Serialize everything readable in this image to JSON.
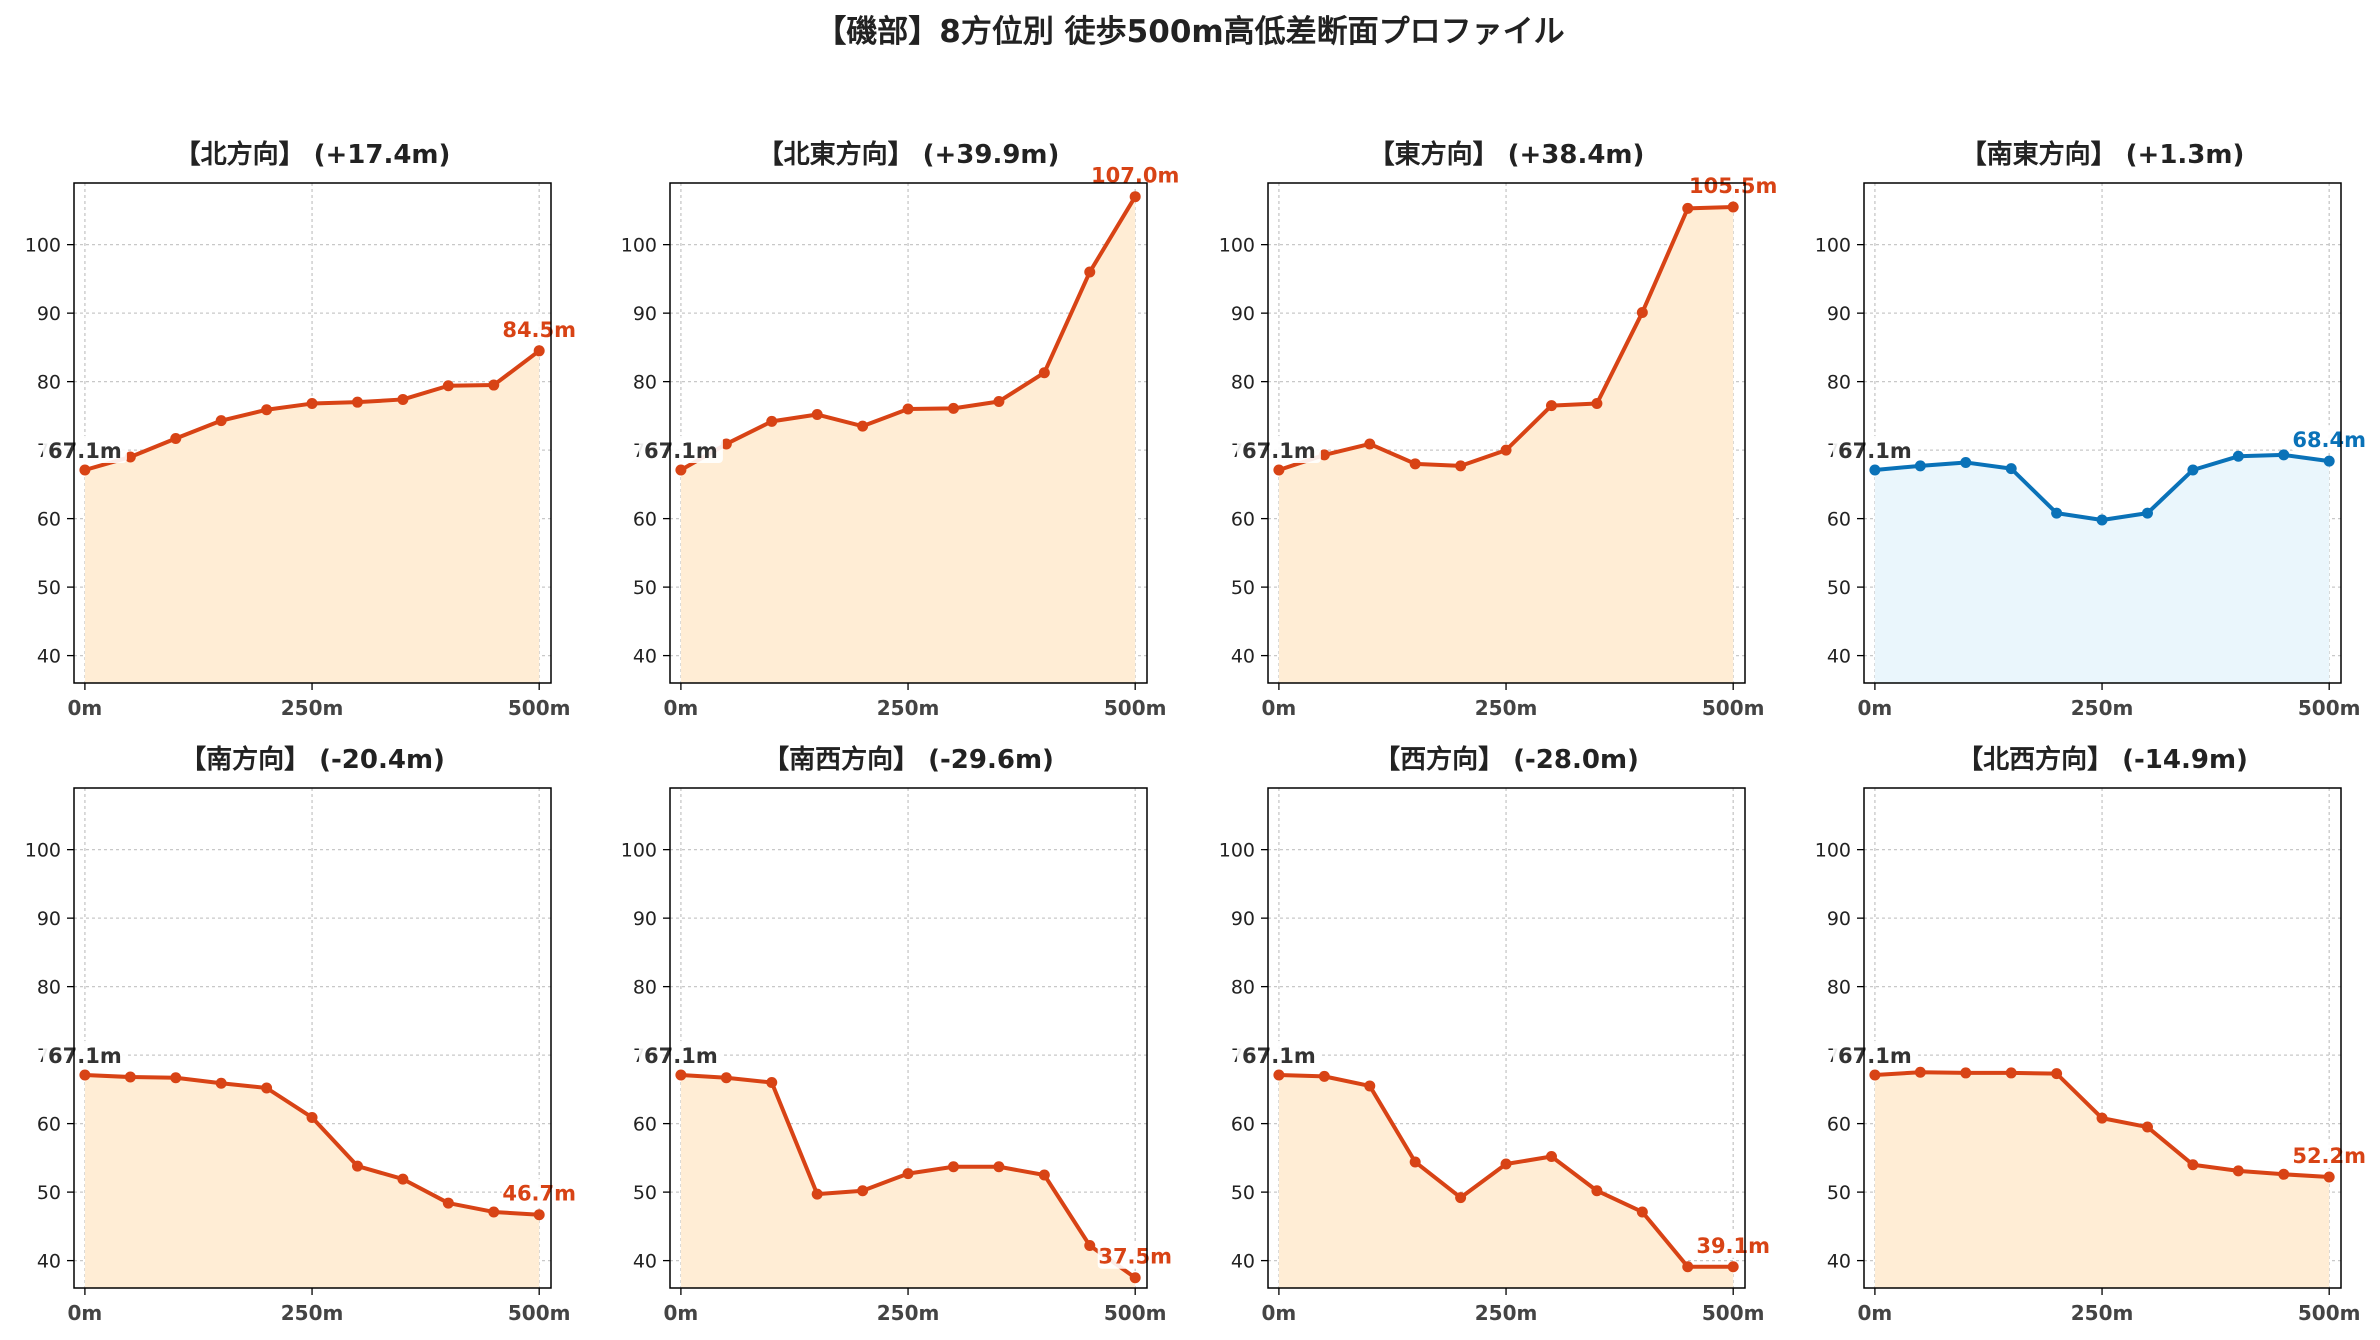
{
  "title": "【磯部】8方位別 徒歩500m高低差断面プロファイル",
  "colors": {
    "rise_line": "#d84315",
    "rise_fill": "#ffedd5",
    "flat_line": "#0a72b8",
    "flat_fill": "#eaf6fc",
    "start_label": "#333333"
  },
  "chart_data": [
    {
      "type": "area",
      "title": "【北方向】 (+17.4m)",
      "tone": "rise",
      "x": [
        0,
        50,
        100,
        150,
        200,
        250,
        300,
        350,
        400,
        450,
        500
      ],
      "values": [
        67.1,
        69.0,
        71.7,
        74.3,
        75.9,
        76.8,
        77.0,
        77.4,
        79.4,
        79.5,
        84.5
      ],
      "start_label": "67.1m",
      "end_label": "84.5m"
    },
    {
      "type": "area",
      "title": "【北東方向】 (+39.9m)",
      "tone": "rise",
      "x": [
        0,
        50,
        100,
        150,
        200,
        250,
        300,
        350,
        400,
        450,
        500
      ],
      "values": [
        67.1,
        70.9,
        74.2,
        75.2,
        73.5,
        76.0,
        76.1,
        77.1,
        81.3,
        96.0,
        107.0
      ],
      "start_label": "67.1m",
      "end_label": "107.0m"
    },
    {
      "type": "area",
      "title": "【東方向】 (+38.4m)",
      "tone": "rise",
      "x": [
        0,
        50,
        100,
        150,
        200,
        250,
        300,
        350,
        400,
        450,
        500
      ],
      "values": [
        67.1,
        69.3,
        70.9,
        68.0,
        67.7,
        70.0,
        76.5,
        76.8,
        90.1,
        105.3,
        105.5
      ],
      "start_label": "67.1m",
      "end_label": "105.5m"
    },
    {
      "type": "area",
      "title": "【南東方向】 (+1.3m)",
      "tone": "flat",
      "x": [
        0,
        50,
        100,
        150,
        200,
        250,
        300,
        350,
        400,
        450,
        500
      ],
      "values": [
        67.1,
        67.7,
        68.2,
        67.3,
        60.8,
        59.8,
        60.8,
        67.1,
        69.1,
        69.3,
        68.4
      ],
      "start_label": "67.1m",
      "end_label": "68.4m"
    },
    {
      "type": "area",
      "title": "【南方向】 (-20.4m)",
      "tone": "rise",
      "x": [
        0,
        50,
        100,
        150,
        200,
        250,
        300,
        350,
        400,
        450,
        500
      ],
      "values": [
        67.1,
        66.8,
        66.7,
        65.9,
        65.2,
        60.9,
        53.8,
        51.9,
        48.4,
        47.1,
        46.7
      ],
      "start_label": "67.1m",
      "end_label": "46.7m"
    },
    {
      "type": "area",
      "title": "【南西方向】 (-29.6m)",
      "tone": "rise",
      "x": [
        0,
        50,
        100,
        150,
        200,
        250,
        300,
        350,
        400,
        450,
        500
      ],
      "values": [
        67.1,
        66.7,
        66.0,
        49.7,
        50.2,
        52.7,
        53.7,
        53.7,
        52.5,
        42.2,
        37.5
      ],
      "start_label": "67.1m",
      "end_label": "37.5m"
    },
    {
      "type": "area",
      "title": "【西方向】 (-28.0m)",
      "tone": "rise",
      "x": [
        0,
        50,
        100,
        150,
        200,
        250,
        300,
        350,
        400,
        450,
        500
      ],
      "values": [
        67.1,
        66.9,
        65.5,
        54.4,
        49.2,
        54.1,
        55.2,
        50.2,
        47.1,
        39.1,
        39.1
      ],
      "start_label": "67.1m",
      "end_label": "39.1m"
    },
    {
      "type": "area",
      "title": "【北西方向】 (-14.9m)",
      "tone": "rise",
      "x": [
        0,
        50,
        100,
        150,
        200,
        250,
        300,
        350,
        400,
        450,
        500
      ],
      "values": [
        67.1,
        67.5,
        67.4,
        67.4,
        67.3,
        60.8,
        59.5,
        54.0,
        53.1,
        52.6,
        52.2
      ],
      "start_label": "67.1m",
      "end_label": "52.2m"
    }
  ],
  "axes": {
    "ylim": [
      36,
      109
    ],
    "yticks": [
      "40",
      "50",
      "60",
      "70",
      "80",
      "90",
      "100"
    ],
    "xlim": [
      -12,
      513
    ],
    "xticks": [
      "0m",
      "250m",
      "500m"
    ],
    "grid": true
  }
}
